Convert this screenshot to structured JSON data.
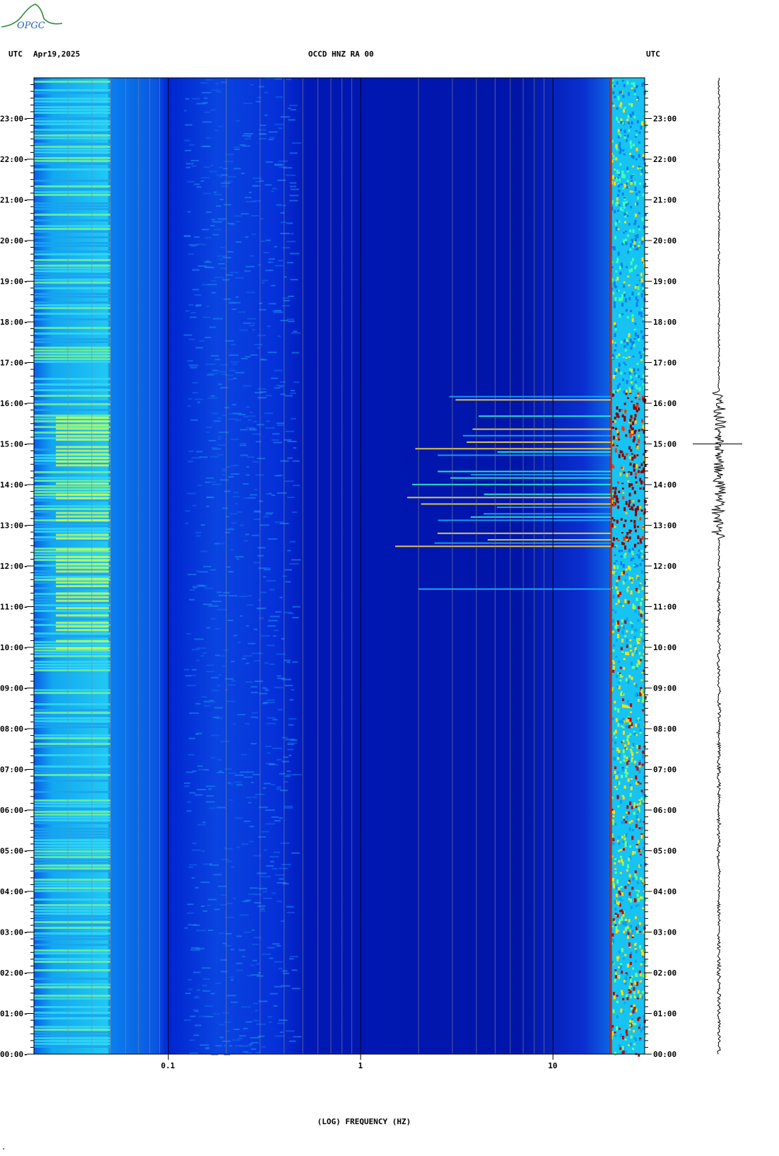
{
  "header": {
    "left_tz": "UTC",
    "date": "Apr19,2025",
    "station": "OCCD HNZ RA 00",
    "right_tz": "UTC"
  },
  "logo": {
    "text": "OPGC"
  },
  "footnote": "\"",
  "chart_data": {
    "type": "heatmap",
    "title": "OCCD HNZ RA 00",
    "xlabel": "(LOG) FREQUENCY (HZ)",
    "ylabel": "",
    "x_scale": "log",
    "x_range_hz": [
      0.02,
      30
    ],
    "x_ticks": [
      {
        "value": 0.1,
        "label": "0.1"
      },
      {
        "value": 1,
        "label": "1"
      },
      {
        "value": 10,
        "label": "10"
      }
    ],
    "y_range_hours": [
      0,
      24
    ],
    "y_ticks": [
      "00:00",
      "01:00",
      "02:00",
      "03:00",
      "04:00",
      "05:00",
      "06:00",
      "07:00",
      "08:00",
      "09:00",
      "10:00",
      "11:00",
      "12:00",
      "13:00",
      "14:00",
      "15:00",
      "16:00",
      "17:00",
      "18:00",
      "19:00",
      "20:00",
      "21:00",
      "22:00",
      "23:00"
    ],
    "colormap": [
      "#0000a0",
      "#0033ff",
      "#00bfff",
      "#80ff80",
      "#ffff00",
      "#ff4000",
      "#8b0000"
    ],
    "features": {
      "persistent_line_hz": 20,
      "active_band_hz": [
        20,
        30
      ],
      "strong_activity_hours": [
        12.5,
        16.3
      ],
      "event_line_hour": 11.45,
      "event_line_freq_hz": [
        2,
        2.2
      ],
      "low_freq_band_hz": [
        0.025,
        0.05
      ]
    },
    "seismogram": {
      "main_event_hour": 15.0,
      "activity_hours": [
        12.7,
        16.3
      ]
    }
  }
}
